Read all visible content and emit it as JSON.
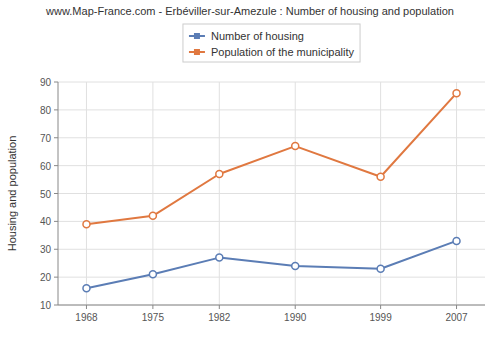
{
  "chart_data": {
    "type": "line",
    "title": "www.Map-France.com - Erbéviller-sur-Amezule : Number of housing and population",
    "ylabel": "Housing and population",
    "x": [
      1968,
      1975,
      1982,
      1990,
      1999,
      2007
    ],
    "series": [
      {
        "name": "Number of housing",
        "color": "#5b7db5",
        "marker": "circle",
        "values": [
          16,
          21,
          27,
          24,
          23,
          33
        ]
      },
      {
        "name": "Population of the municipality",
        "color": "#e07840",
        "marker": "circle",
        "values": [
          39,
          42,
          57,
          67,
          56,
          86
        ]
      }
    ],
    "xlim": [
      1965,
      2010
    ],
    "xticks": [
      1968,
      1975,
      1982,
      1990,
      1999,
      2007
    ],
    "ylim": [
      10,
      90
    ],
    "yticks": [
      10,
      20,
      30,
      40,
      50,
      60,
      70,
      80,
      90
    ],
    "grid": true,
    "legend": "upper center"
  }
}
